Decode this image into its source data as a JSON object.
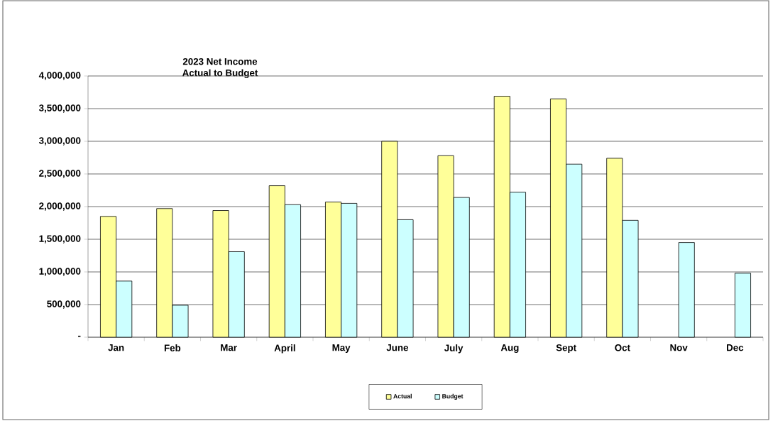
{
  "chart_data": {
    "type": "bar",
    "title": "2023 Net Income",
    "subtitle": "Actual to Budget",
    "categories": [
      "Jan",
      "Feb",
      "Mar",
      "April",
      "May",
      "June",
      "July",
      "Aug",
      "Sept",
      "Oct",
      "Nov",
      "Dec"
    ],
    "series": [
      {
        "name": "Actual",
        "color": "#ffff99",
        "values": [
          1850000,
          1970000,
          1940000,
          2320000,
          2070000,
          3000000,
          2780000,
          3690000,
          3650000,
          2740000,
          null,
          null
        ]
      },
      {
        "name": "Budget",
        "color": "#ccffff",
        "values": [
          860000,
          490000,
          1310000,
          2030000,
          2050000,
          1800000,
          2140000,
          2220000,
          2650000,
          1790000,
          1450000,
          980000
        ]
      }
    ],
    "ylim": [
      0,
      4000000
    ],
    "yticks": [
      {
        "value": 0,
        "label": "-"
      },
      {
        "value": 500000,
        "label": "500,000"
      },
      {
        "value": 1000000,
        "label": "1,000,000"
      },
      {
        "value": 1500000,
        "label": "1,500,000"
      },
      {
        "value": 2000000,
        "label": "2,000,000"
      },
      {
        "value": 2500000,
        "label": "2,500,000"
      },
      {
        "value": 3000000,
        "label": "3,000,000"
      },
      {
        "value": 3500000,
        "label": "3,500,000"
      },
      {
        "value": 4000000,
        "label": "4,000,000"
      }
    ],
    "grid": "y",
    "legend": "bottom"
  }
}
